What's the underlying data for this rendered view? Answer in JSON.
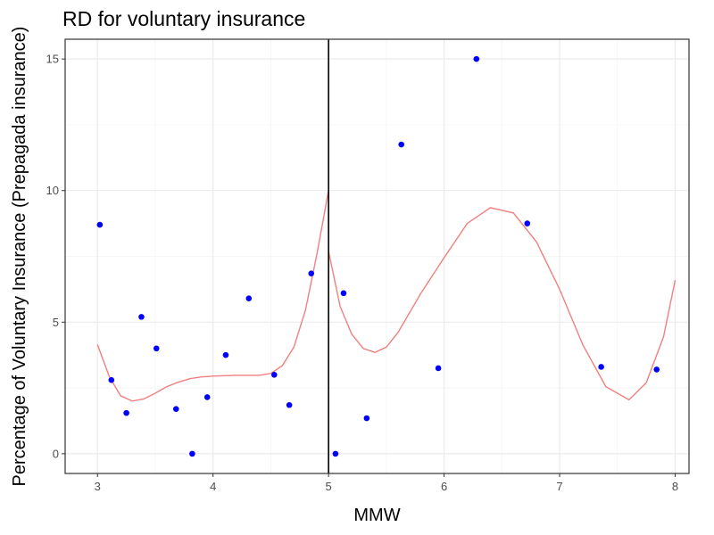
{
  "chart_data": {
    "type": "scatter",
    "title": "RD for voluntary insurance",
    "xlabel": "MMW",
    "ylabel": "Percentage of Voluntary Insurance (Prepagada insurance)",
    "xlim": [
      2.72,
      8.12
    ],
    "ylim": [
      -0.75,
      15.75
    ],
    "xticks": [
      3,
      4,
      5,
      6,
      7,
      8
    ],
    "yticks": [
      0,
      5,
      10,
      15
    ],
    "grid": true,
    "cutoff": 5,
    "points": [
      {
        "x": 3.02,
        "y": 8.7
      },
      {
        "x": 3.12,
        "y": 2.8
      },
      {
        "x": 3.25,
        "y": 1.55
      },
      {
        "x": 3.38,
        "y": 5.2
      },
      {
        "x": 3.51,
        "y": 4.0
      },
      {
        "x": 3.68,
        "y": 1.7
      },
      {
        "x": 3.82,
        "y": 0.0
      },
      {
        "x": 3.95,
        "y": 2.15
      },
      {
        "x": 4.11,
        "y": 3.75
      },
      {
        "x": 4.31,
        "y": 5.9
      },
      {
        "x": 4.53,
        "y": 3.0
      },
      {
        "x": 4.66,
        "y": 1.85
      },
      {
        "x": 4.85,
        "y": 6.85
      },
      {
        "x": 5.06,
        "y": 0.0
      },
      {
        "x": 5.13,
        "y": 6.1
      },
      {
        "x": 5.33,
        "y": 1.35
      },
      {
        "x": 5.63,
        "y": 11.75
      },
      {
        "x": 5.95,
        "y": 3.25
      },
      {
        "x": 6.28,
        "y": 15.0
      },
      {
        "x": 6.72,
        "y": 8.75
      },
      {
        "x": 7.36,
        "y": 3.3
      },
      {
        "x": 7.84,
        "y": 3.2
      }
    ],
    "fit_left": [
      {
        "x": 3.0,
        "y": 4.15
      },
      {
        "x": 3.1,
        "y": 2.95
      },
      {
        "x": 3.2,
        "y": 2.2
      },
      {
        "x": 3.3,
        "y": 2.0
      },
      {
        "x": 3.4,
        "y": 2.08
      },
      {
        "x": 3.5,
        "y": 2.3
      },
      {
        "x": 3.6,
        "y": 2.55
      },
      {
        "x": 3.7,
        "y": 2.72
      },
      {
        "x": 3.8,
        "y": 2.85
      },
      {
        "x": 3.9,
        "y": 2.92
      },
      {
        "x": 4.0,
        "y": 2.95
      },
      {
        "x": 4.2,
        "y": 2.98
      },
      {
        "x": 4.4,
        "y": 2.98
      },
      {
        "x": 4.5,
        "y": 3.05
      },
      {
        "x": 4.6,
        "y": 3.35
      },
      {
        "x": 4.7,
        "y": 4.05
      },
      {
        "x": 4.8,
        "y": 5.45
      },
      {
        "x": 4.9,
        "y": 7.6
      },
      {
        "x": 5.0,
        "y": 10.0
      }
    ],
    "fit_right": [
      {
        "x": 5.0,
        "y": 7.7
      },
      {
        "x": 5.1,
        "y": 5.6
      },
      {
        "x": 5.2,
        "y": 4.55
      },
      {
        "x": 5.3,
        "y": 4.0
      },
      {
        "x": 5.4,
        "y": 3.85
      },
      {
        "x": 5.5,
        "y": 4.05
      },
      {
        "x": 5.6,
        "y": 4.6
      },
      {
        "x": 5.8,
        "y": 6.1
      },
      {
        "x": 6.0,
        "y": 7.45
      },
      {
        "x": 6.2,
        "y": 8.75
      },
      {
        "x": 6.4,
        "y": 9.35
      },
      {
        "x": 6.6,
        "y": 9.15
      },
      {
        "x": 6.8,
        "y": 8.05
      },
      {
        "x": 7.0,
        "y": 6.25
      },
      {
        "x": 7.2,
        "y": 4.15
      },
      {
        "x": 7.4,
        "y": 2.55
      },
      {
        "x": 7.6,
        "y": 2.05
      },
      {
        "x": 7.75,
        "y": 2.7
      },
      {
        "x": 7.9,
        "y": 4.45
      },
      {
        "x": 8.0,
        "y": 6.6
      }
    ],
    "colors": {
      "points": "#0000ff",
      "fit": "#f08080",
      "cutoff": "#000000",
      "grid_major": "#ebebeb",
      "grid_minor": "#f4f4f4",
      "border": "#333333"
    }
  }
}
